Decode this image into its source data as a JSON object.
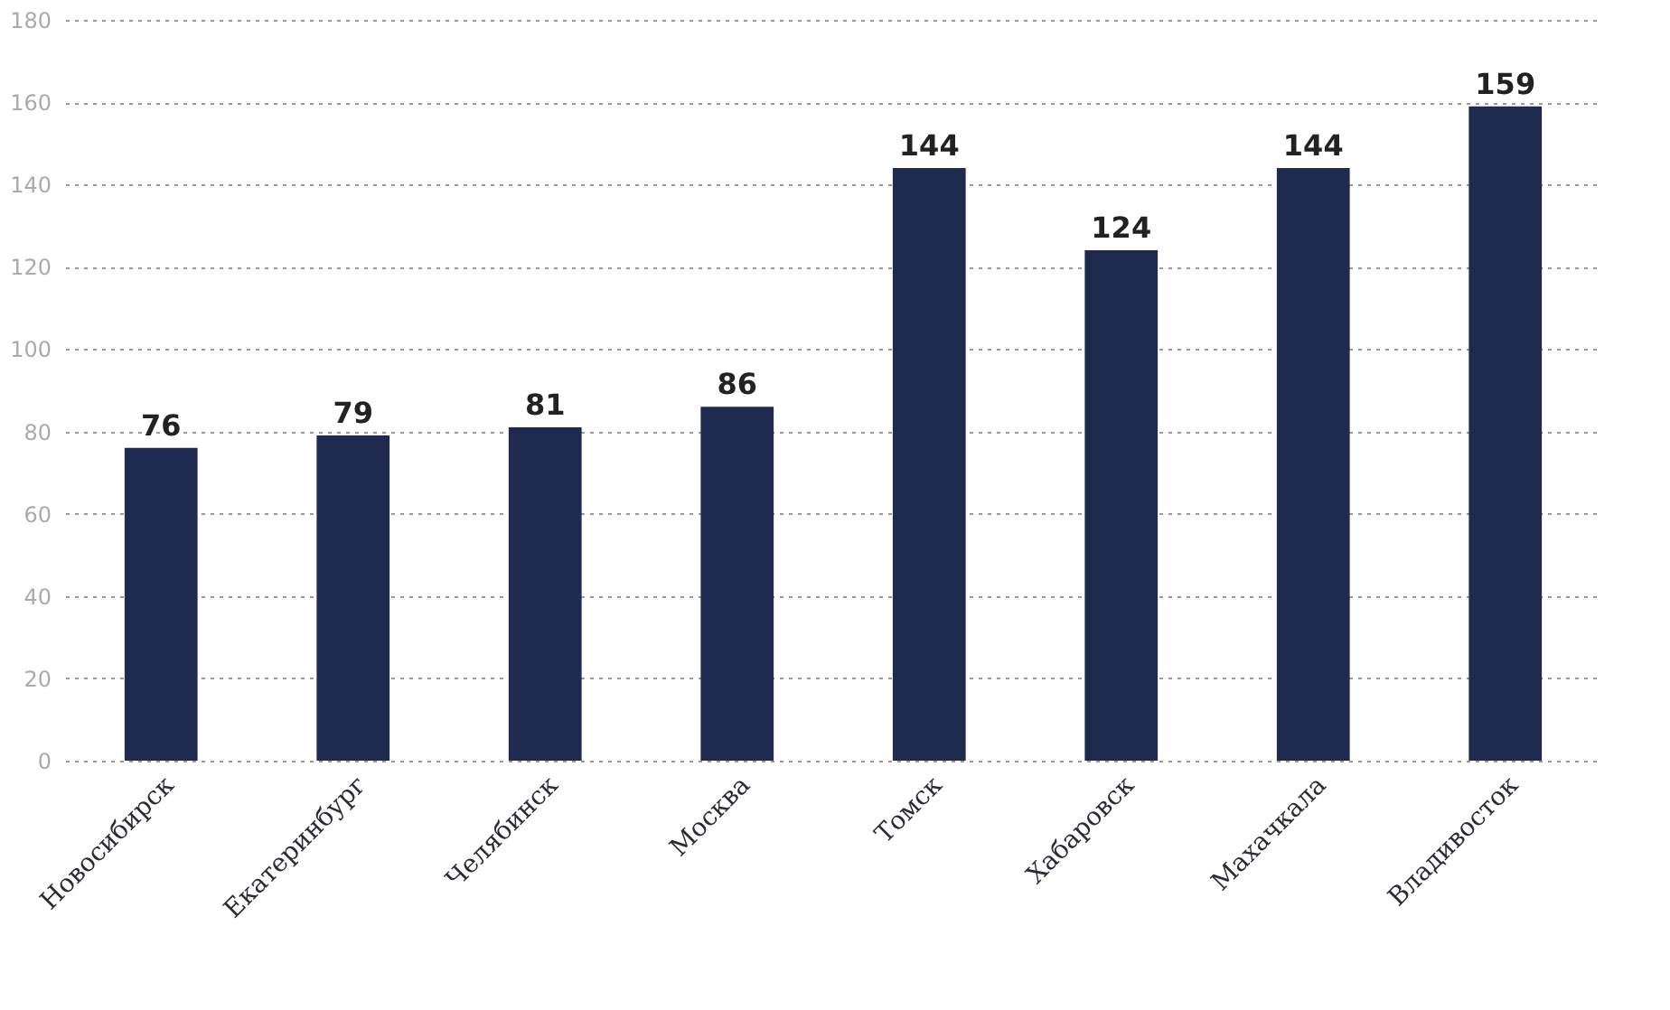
{
  "chart_data": {
    "type": "bar",
    "categories": [
      "Новосибирск",
      "Екатеринбург",
      "Челябинск",
      "Москва",
      "Томск",
      "Хабаровск",
      "Махачкала",
      "Владивосток"
    ],
    "values": [
      76,
      79,
      81,
      86,
      144,
      124,
      144,
      159
    ],
    "color": "#1e2a4e",
    "ylim": [
      0,
      180
    ],
    "yticks": [
      0,
      20,
      40,
      60,
      80,
      100,
      120,
      140,
      160,
      180
    ],
    "grid": "y",
    "data_labels": true
  }
}
